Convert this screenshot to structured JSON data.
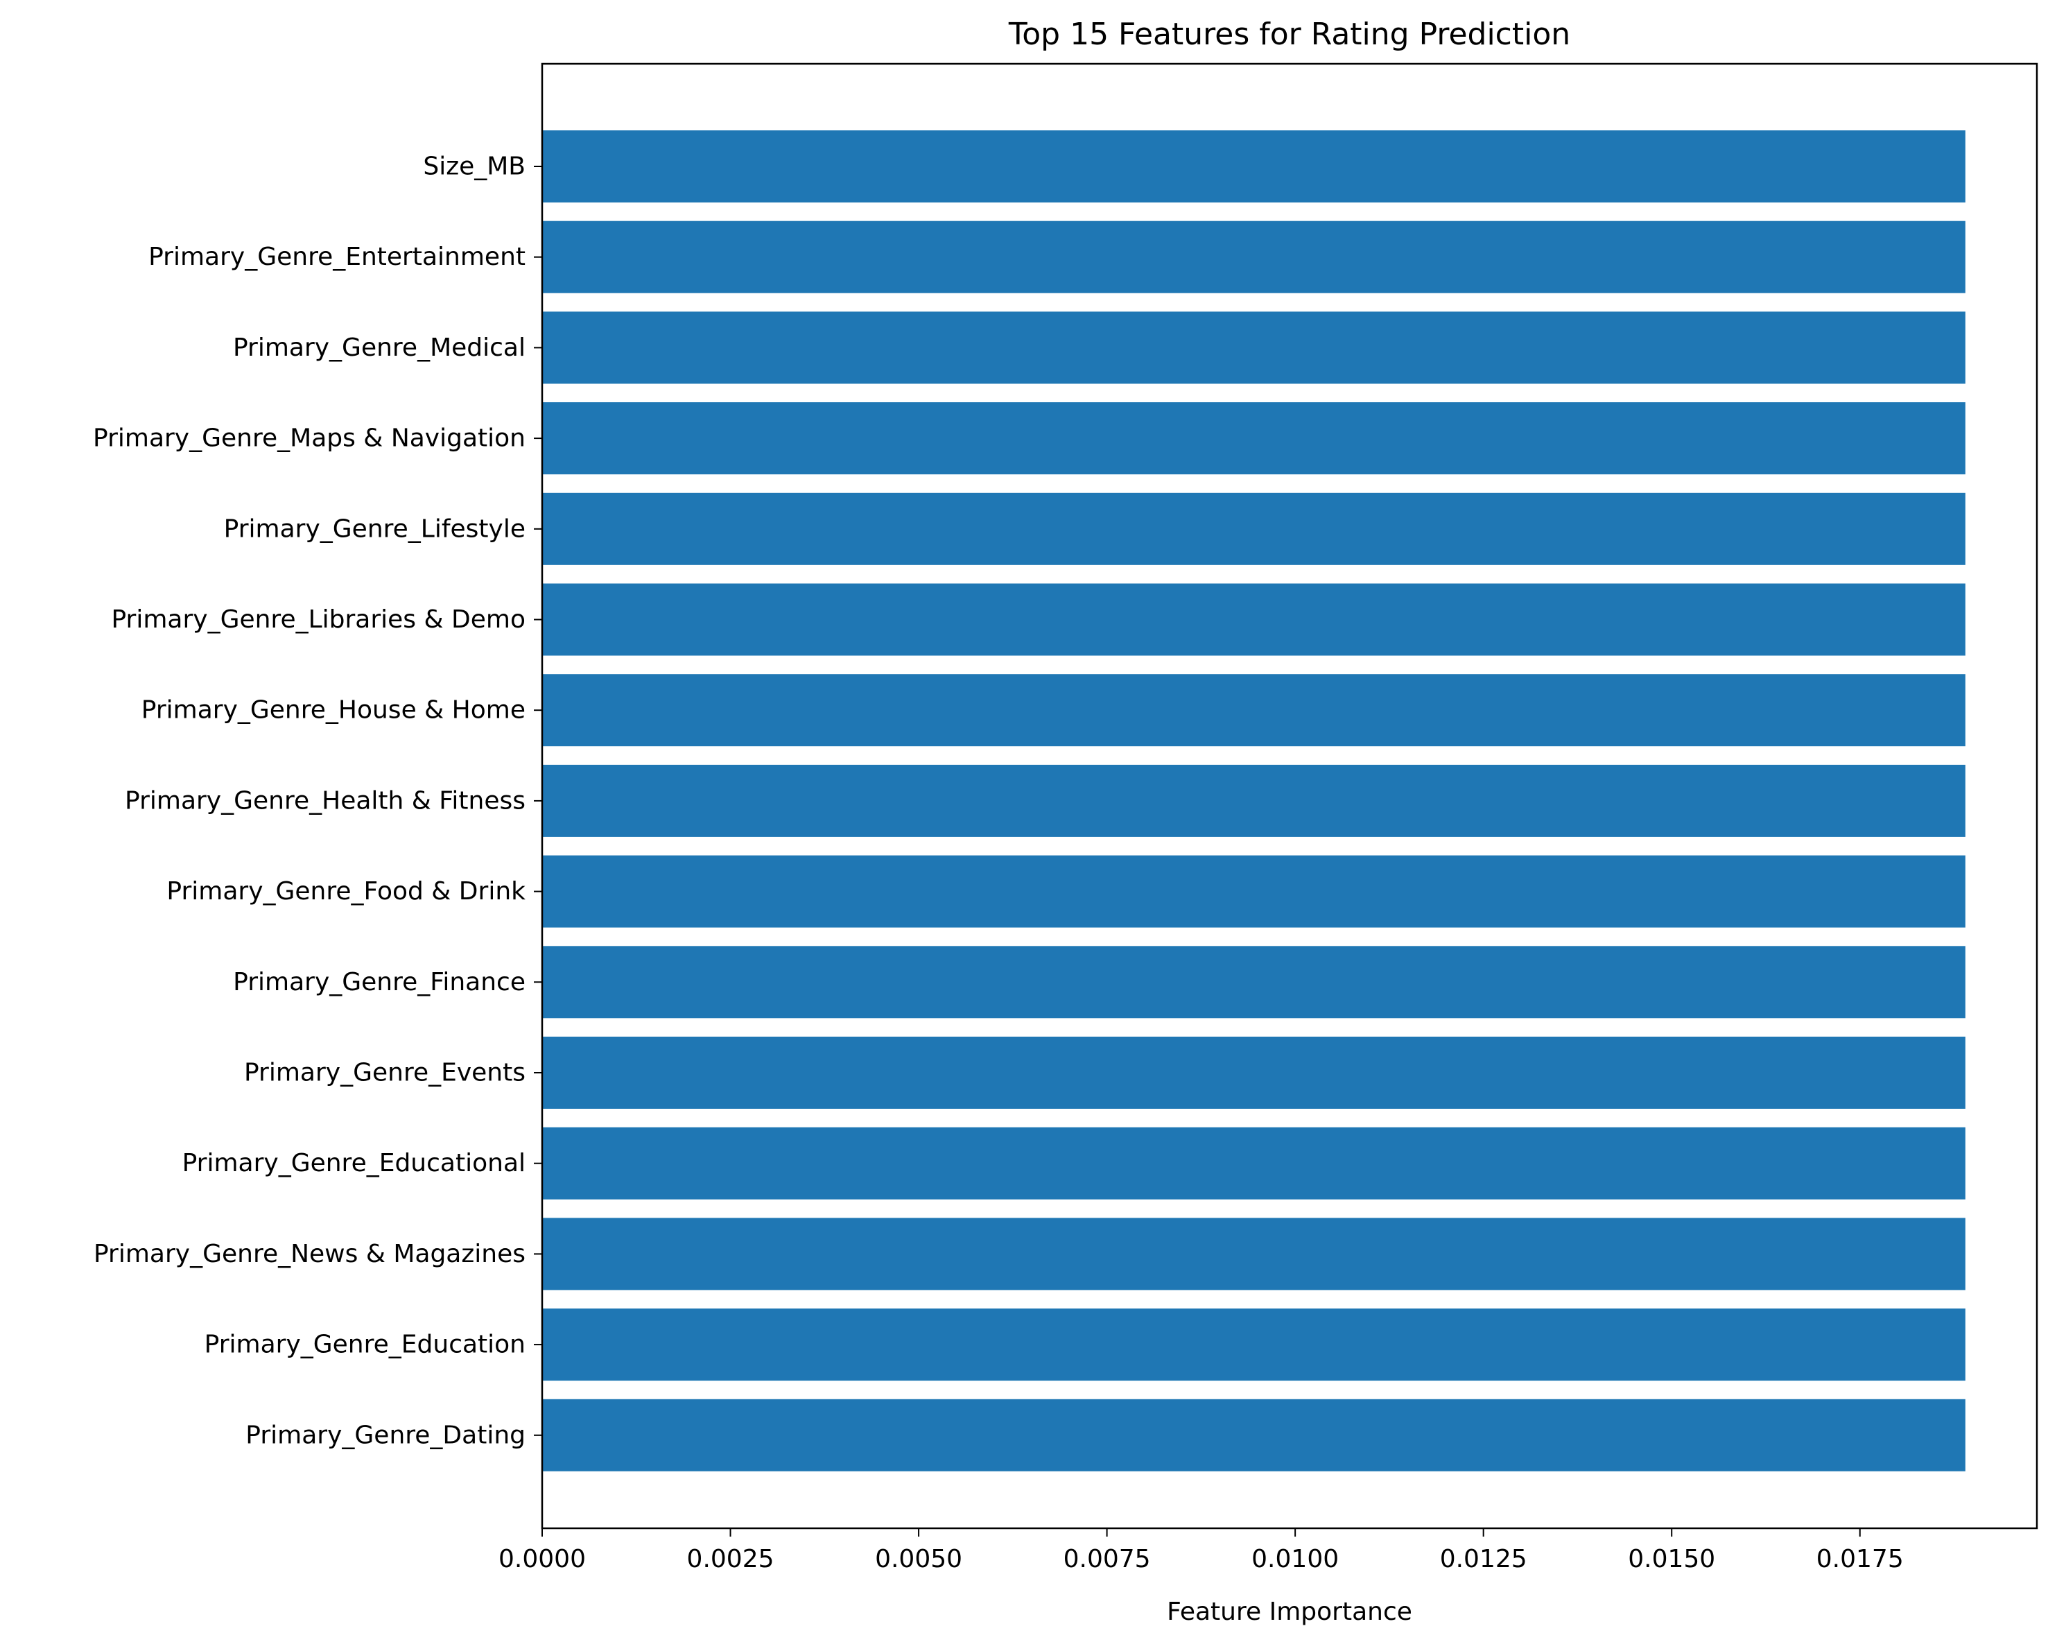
{
  "chart_data": {
    "type": "bar",
    "orientation": "horizontal",
    "title": "Top 15 Features for Rating Prediction",
    "xlabel": "Feature Importance",
    "ylabel": "",
    "categories": [
      "Size_MB",
      "Primary_Genre_Entertainment",
      "Primary_Genre_Medical",
      "Primary_Genre_Maps & Navigation",
      "Primary_Genre_Lifestyle",
      "Primary_Genre_Libraries & Demo",
      "Primary_Genre_House & Home",
      "Primary_Genre_Health & Fitness",
      "Primary_Genre_Food & Drink",
      "Primary_Genre_Finance",
      "Primary_Genre_Events",
      "Primary_Genre_Educational",
      "Primary_Genre_News & Magazines",
      "Primary_Genre_Education",
      "Primary_Genre_Dating"
    ],
    "values": [
      0.0189,
      0.0189,
      0.0189,
      0.0189,
      0.0189,
      0.0189,
      0.0189,
      0.0189,
      0.0189,
      0.0189,
      0.0189,
      0.0189,
      0.0189,
      0.0189,
      0.0189
    ],
    "xlim": [
      0,
      0.01985
    ],
    "xticks": [
      0.0,
      0.0025,
      0.005,
      0.0075,
      0.01,
      0.0125,
      0.015,
      0.0175
    ],
    "xtick_labels": [
      "0.0000",
      "0.0025",
      "0.0050",
      "0.0075",
      "0.0100",
      "0.0125",
      "0.0150",
      "0.0175"
    ],
    "grid": false,
    "bar_color": "#1f77b4"
  }
}
